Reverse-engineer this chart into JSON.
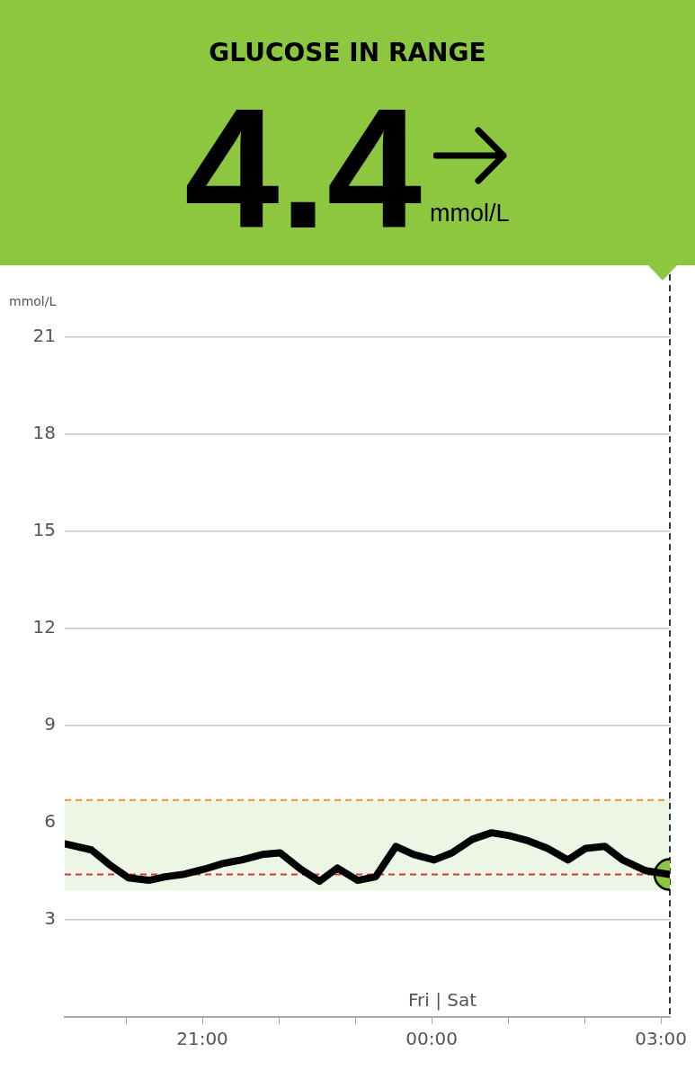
{
  "chart_data": {
    "type": "line",
    "title": "GLUCOSE IN RANGE",
    "subtitle": "4.4",
    "ylabel": "mmol/L",
    "annotations": [
      "mmol/L",
      "Fri | Sat"
    ],
    "xlim": [
      "--01-05T19:12",
      "--01-06T03:07"
    ],
    "ylim": [
      0,
      21
    ],
    "xticks": [
      {
        "value": "--01-05T20:00",
        "label": null
      },
      {
        "value": "--01-05T21:00",
        "label": "21:00"
      },
      {
        "value": "--01-05T22:00",
        "label": null
      },
      {
        "value": "--01-05T23:00",
        "label": null
      },
      {
        "value": "--01-06T00:00",
        "label": "00:00"
      },
      {
        "value": "--01-06T01:00",
        "label": null
      },
      {
        "value": "--01-06T02:00",
        "label": null
      },
      {
        "value": "--01-06T03:00",
        "label": "03:00"
      }
    ],
    "yticks": [
      3,
      6,
      9,
      12,
      15,
      18,
      21
    ],
    "grid": "y",
    "legend": false,
    "series": [
      {
        "type": "line",
        "color": "#000000",
        "marker": "none",
        "x": [
          "--01-05T19:12",
          "--01-05T19:33",
          "--01-05T19:47",
          "--01-05T20:02",
          "--01-05T20:18",
          "--01-05T20:31",
          "--01-05T20:46",
          "--01-05T21:02",
          "--01-05T21:16",
          "--01-05T21:31",
          "--01-05T21:47",
          "--01-05T22:01",
          "--01-05T22:17",
          "--01-05T22:32",
          "--01-05T22:46",
          "--01-05T23:02",
          "--01-05T23:16",
          "--01-05T23:32",
          "--01-05T23:46",
          "--01-06T00:02",
          "--01-06T00:16",
          "--01-06T00:32",
          "--01-06T00:47",
          "--01-06T01:01",
          "--01-06T01:16",
          "--01-06T01:31",
          "--01-06T01:47",
          "--01-06T02:01",
          "--01-06T02:16",
          "--01-06T02:30",
          "--01-06T02:48",
          "--01-06T03:07"
        ],
        "values": [
          5.35,
          5.16,
          4.71,
          4.3,
          4.22,
          4.33,
          4.41,
          4.57,
          4.74,
          4.85,
          5.02,
          5.07,
          4.57,
          4.19,
          4.6,
          4.22,
          4.33,
          5.27,
          5.02,
          4.85,
          5.07,
          5.49,
          5.69,
          5.6,
          5.44,
          5.21,
          4.85,
          5.21,
          5.27,
          4.85,
          4.52,
          4.4
        ]
      },
      {
        "type": "scatter",
        "color": "#8dc63f",
        "marker": "circle",
        "x": [
          "--01-06T03:07"
        ],
        "values": [
          4.4
        ]
      }
    ],
    "bands": [
      {
        "axis": "y",
        "from": 3.9,
        "to": 6.7,
        "color": "#edf5e4"
      }
    ],
    "ref_lines": [
      {
        "axis": "y",
        "value": 6.7,
        "color": "#e8912d",
        "line_style": "dashed"
      },
      {
        "axis": "y",
        "value": 4.4,
        "color": "#d9363e",
        "line_style": "dashed"
      },
      {
        "axis": "x",
        "value": "--01-06T03:07",
        "color": "#333333",
        "line_style": "dashed"
      }
    ]
  }
}
